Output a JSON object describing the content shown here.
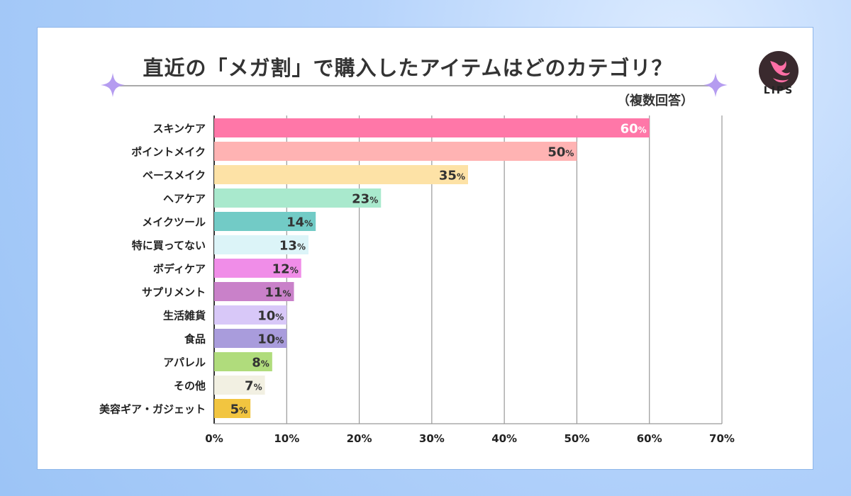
{
  "header": {
    "title": "直近の「メガ割」で購入したアイテムはどのカテゴリ？",
    "subtitle": "（複数回答）",
    "brand": "LIPS"
  },
  "colors": {
    "card_border": "#8fb7ea",
    "sparkle": "#b59cf0",
    "logo_dark": "#3a2a2e",
    "logo_pink": "#ff6fa6"
  },
  "icons": [
    "sparkle-icon",
    "lips-logo-icon"
  ],
  "chart_data": {
    "type": "bar",
    "orientation": "horizontal",
    "categories": [
      "スキンケア",
      "ポイントメイク",
      "ベースメイク",
      "ヘアケア",
      "メイクツール",
      "特に買ってない",
      "ボディケア",
      "サプリメント",
      "生活雑貨",
      "食品",
      "アパレル",
      "その他",
      "美容ギア・ガジェット"
    ],
    "values": [
      60,
      50,
      35,
      23,
      14,
      13,
      12,
      11,
      10,
      10,
      8,
      7,
      5
    ],
    "value_suffix": "%",
    "colors": [
      "#ff77a8",
      "#ffb3b3",
      "#fde2a6",
      "#a9e9cd",
      "#72cbc6",
      "#dcf4f8",
      "#f08de8",
      "#c981c9",
      "#d8c8f8",
      "#a99cdc",
      "#b0dc7c",
      "#f2f0e2",
      "#f2c540"
    ],
    "label_colors": [
      "#ffffff",
      "#333333",
      "#333333",
      "#333333",
      "#333333",
      "#333333",
      "#333333",
      "#333333",
      "#333333",
      "#333333",
      "#333333",
      "#333333",
      "#333333"
    ],
    "xlim": [
      0,
      70
    ],
    "xticks": [
      0,
      10,
      20,
      30,
      40,
      50,
      60,
      70
    ],
    "xtick_labels": [
      "0%",
      "10%",
      "20%",
      "30%",
      "40%",
      "50%",
      "60%",
      "70%"
    ],
    "grid": true,
    "legend": "none"
  }
}
